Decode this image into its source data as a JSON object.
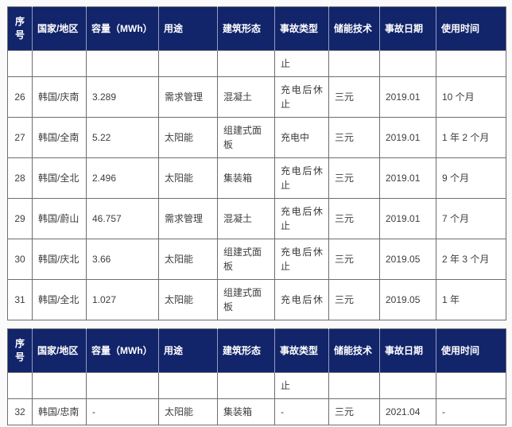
{
  "theme": {
    "header_bg": "#12246a",
    "header_text": "#ffffff",
    "grid_color": "#6e6e6e",
    "cell_bg": "#ffffff",
    "body_text": "#3d3d3d",
    "page_bg": "#fafafa"
  },
  "columns": [
    "序号",
    "国家/地区",
    "容量（MWh）",
    "用途",
    "建筑形态",
    "事故类型",
    "储能技术",
    "事故日期",
    "使用时间"
  ],
  "tables": [
    {
      "name": "incidents-page-1",
      "rows": [
        [
          "",
          "",
          "",
          "",
          "",
          "止",
          "",
          "",
          ""
        ],
        [
          "26",
          "韩国/庆南",
          "3.289",
          "需求管理",
          "混凝土",
          "充电后休止",
          "三元",
          "2019.01",
          "10 个月"
        ],
        [
          "27",
          "韩国/全南",
          "5.22",
          "太阳能",
          "组建式面板",
          "充电中",
          "三元",
          "2019.01",
          "1 年 2 个月"
        ],
        [
          "28",
          "韩国/全北",
          "2.496",
          "太阳能",
          "集装箱",
          "充电后休止",
          "三元",
          "2019.01",
          "9 个月"
        ],
        [
          "29",
          "韩国/蔚山",
          "46.757",
          "需求管理",
          "混凝土",
          "充电后休止",
          "三元",
          "2019.01",
          "7 个月"
        ],
        [
          "30",
          "韩国/庆北",
          "3.66",
          "太阳能",
          "组建式面板",
          "充电后休止",
          "三元",
          "2019.05",
          "2 年 3 个月"
        ],
        [
          "31",
          "韩国/全北",
          "1.027",
          "太阳能",
          "组建式面板",
          "充电后休",
          "三元",
          "2019.05",
          "1 年"
        ]
      ]
    },
    {
      "name": "incidents-page-2",
      "rows": [
        [
          "",
          "",
          "",
          "",
          "",
          "止",
          "",
          "",
          ""
        ],
        [
          "32",
          "韩国/忠南",
          "-",
          "太阳能",
          "集装箱",
          "-",
          "三元",
          "2021.04",
          "-"
        ]
      ]
    }
  ]
}
